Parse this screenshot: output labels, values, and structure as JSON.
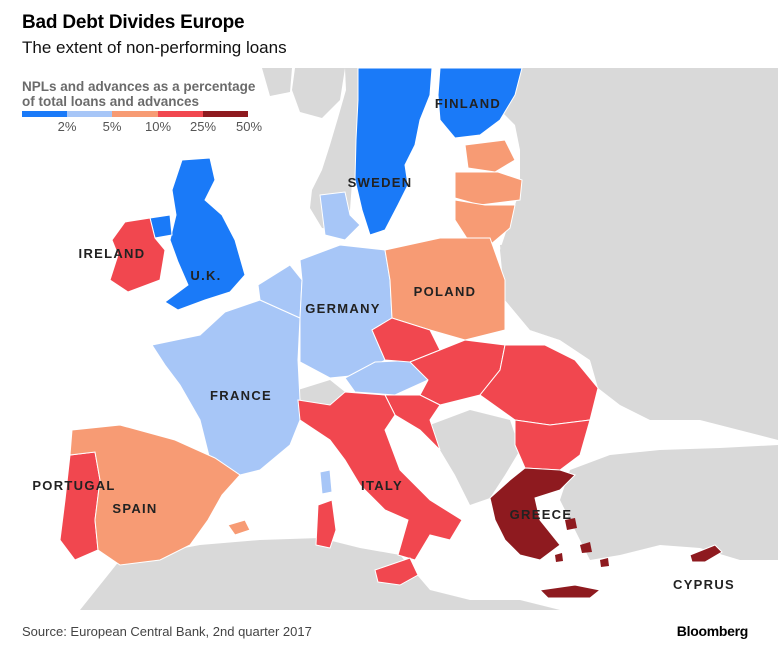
{
  "header": {
    "title": "Bad Debt Divides Europe",
    "subtitle": "The extent of non-performing loans"
  },
  "legend": {
    "title_line1": "NPLs and advances as a percentage",
    "title_line2": "of total loans and advances",
    "ticks": [
      "2%",
      "5%",
      "10%",
      "25%",
      "50%"
    ],
    "colors": [
      "#1a7af8",
      "#a7c6f7",
      "#f79b74",
      "#f1474f",
      "#8e1a1f"
    ]
  },
  "countries": {
    "finland": "FINLAND",
    "sweden": "SWEDEN",
    "ireland": "IRELAND",
    "uk": "U.K.",
    "poland": "POLAND",
    "germany": "GERMANY",
    "france": "FRANCE",
    "portugal": "PORTUGAL",
    "spain": "SPAIN",
    "italy": "ITALY",
    "greece": "GREECE",
    "cyprus": "CYPRUS"
  },
  "footer": {
    "source": "Source: European Central Bank, 2nd quarter 2017",
    "brand": "Bloomberg"
  },
  "colors": {
    "sea": "#ffffff",
    "land_other": "#d9d9d9",
    "border": "#ffffff"
  }
}
